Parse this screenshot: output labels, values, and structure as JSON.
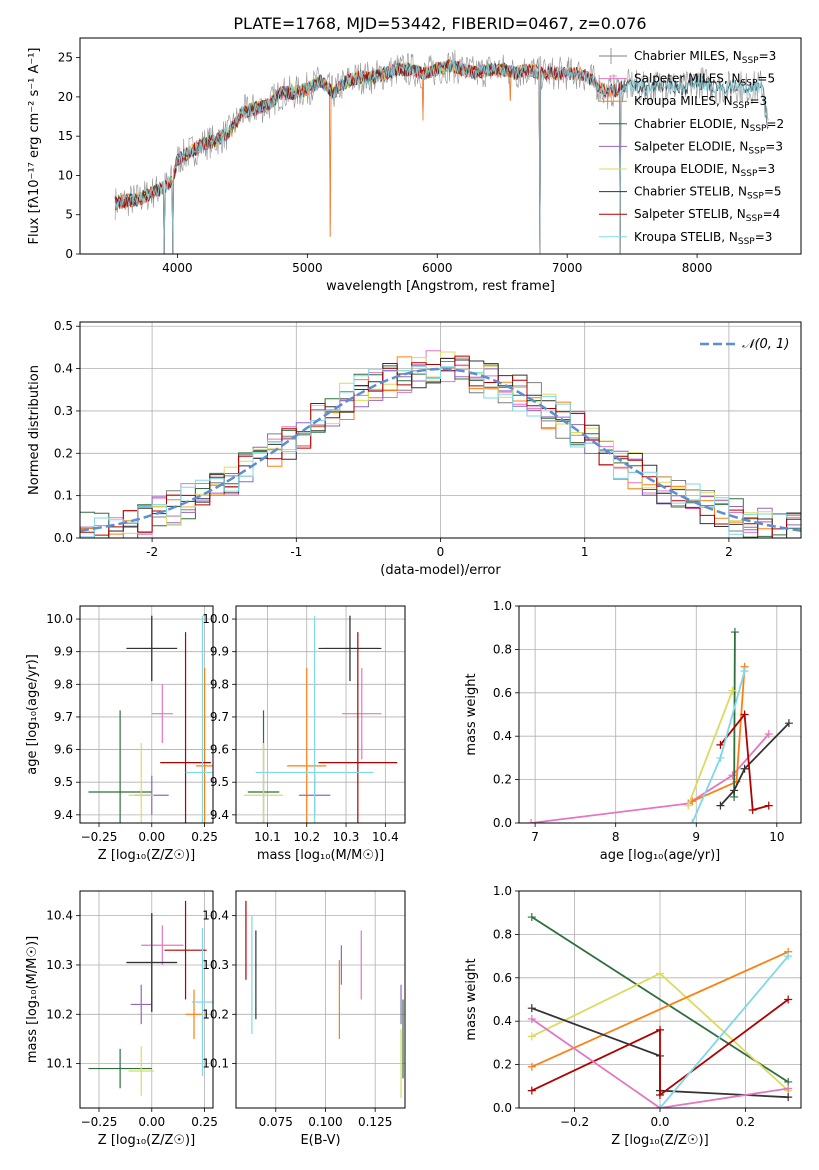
{
  "title": "PLATE=1768, MJD=53442, FIBERID=0467, z=0.076",
  "colors": {
    "Chabrier MILES": "#7f7f7f",
    "Salpeter MILES": "#e377c2",
    "Kroupa MILES": "#ff7f0e",
    "Chabrier ELODIE": "#2f6f3f",
    "Salpeter ELODIE": "#9467bd",
    "Kroupa ELODIE": "#dbdb5d",
    "Chabrier STELIB": "#333333",
    "Salpeter STELIB": "#b00000",
    "Kroupa STELIB": "#7fd8e8"
  },
  "chart_data": [
    {
      "id": "spectrum",
      "type": "line",
      "xlabel": "wavelength [Angstrom, rest frame]",
      "ylabel": "Flux [fλ10⁻¹⁷ erg cm⁻² s⁻¹ A⁻¹]",
      "xlim": [
        3250,
        8800
      ],
      "ylim": [
        0,
        27.5
      ],
      "xticks": [
        4000,
        5000,
        6000,
        7000,
        8000
      ],
      "yticks": [
        0,
        5,
        10,
        15,
        20,
        25
      ],
      "legend_position": "top-right",
      "series": [
        {
          "name": "Chabrier MILES, N",
          "sub": "SSP",
          "eq": "=3"
        },
        {
          "name": "Salpeter MILES, N",
          "sub": "SSP",
          "eq": "=5"
        },
        {
          "name": "Kroupa MILES, N",
          "sub": "SSP",
          "eq": "=3"
        },
        {
          "name": "Chabrier ELODIE, N",
          "sub": "SSP",
          "eq": "=2"
        },
        {
          "name": "Salpeter ELODIE, N",
          "sub": "SSP",
          "eq": "=3"
        },
        {
          "name": "Kroupa ELODIE, N",
          "sub": "SSP",
          "eq": "=3"
        },
        {
          "name": "Chabrier STELIB, N",
          "sub": "SSP",
          "eq": "=5"
        },
        {
          "name": "Salpeter STELIB, N",
          "sub": "SSP",
          "eq": "=4"
        },
        {
          "name": "Kroupa STELIB, N",
          "sub": "SSP",
          "eq": "=3"
        }
      ],
      "envelope": {
        "x": [
          3520,
          3700,
          3900,
          3960,
          4000,
          4100,
          4200,
          4300,
          4400,
          4500,
          4600,
          4700,
          4800,
          4900,
          5000,
          5100,
          5200,
          5300,
          5400,
          5500,
          5600,
          5700,
          5800,
          5900,
          6000,
          6100,
          6200,
          6300,
          6400,
          6500,
          6600,
          6700,
          6800,
          6900,
          7000,
          7100,
          7200,
          7300,
          7400,
          7500,
          7600,
          7700,
          7800,
          7900,
          8000,
          8100,
          8200,
          8300,
          8400,
          8500,
          8550
        ],
        "y": [
          6.5,
          7.0,
          8.5,
          9.5,
          12.0,
          13.0,
          14.0,
          14.5,
          15.5,
          18.0,
          18.5,
          19.0,
          20.5,
          20.5,
          21.0,
          22.0,
          20.5,
          22.0,
          22.5,
          22.5,
          23.0,
          23.5,
          23.5,
          23.0,
          23.5,
          24.0,
          23.5,
          23.0,
          23.5,
          23.5,
          23.0,
          23.5,
          23.0,
          23.0,
          23.0,
          23.0,
          22.0,
          20.5,
          21.0,
          21.5,
          21.0,
          21.5,
          21.5,
          21.0,
          22.0,
          21.5,
          21.0,
          21.5,
          21.0,
          21.5,
          16.0
        ]
      },
      "features": [
        {
          "x": 3900,
          "y": 0
        },
        {
          "x": 3965,
          "y": 0
        },
        {
          "x": 5175,
          "y": 2.2
        },
        {
          "x": 5890,
          "y": 17.0
        },
        {
          "x": 6563,
          "y": 19.5
        },
        {
          "x": 6790,
          "y": 0
        },
        {
          "x": 7410,
          "y": 0
        }
      ]
    },
    {
      "id": "residuals",
      "type": "line",
      "xlabel": "(data-model)/error",
      "ylabel": "Normed distribution",
      "xlim": [
        -2.5,
        2.5
      ],
      "ylim": [
        0,
        0.51
      ],
      "xticks": [
        -2,
        -1,
        0,
        1,
        2
      ],
      "yticks": [
        0.0,
        0.1,
        0.2,
        0.3,
        0.4,
        0.5
      ],
      "grid": true,
      "legend_position": "top-right",
      "reference": {
        "name": "𝒩(0, 1)",
        "color": "#5b8ed6",
        "mean": 0,
        "sigma": 1
      },
      "bin_width": 0.1
    },
    {
      "id": "z-age",
      "type": "scatter",
      "xlabel": "Z [log₁₀(Z/Z☉)]",
      "ylabel": "age  [log₁₀(age/yr)]",
      "xlim": [
        -0.34,
        0.29
      ],
      "ylim": [
        9.375,
        10.04
      ],
      "xticks": [
        -0.25,
        0.0,
        0.25
      ],
      "xticklabels": [
        "−0.25",
        "0.00",
        "0.25"
      ],
      "yticks": [
        9.4,
        9.5,
        9.6,
        9.7,
        9.8,
        9.9,
        10.0
      ],
      "grid": true,
      "points": [
        {
          "s": "Chabrier MILES",
          "x": 0.0,
          "y": 9.91,
          "xerr": 0.12,
          "yerr": 0.1
        },
        {
          "s": "Salpeter MILES",
          "x": 0.05,
          "y": 9.71,
          "xerr": 0.05,
          "yerr": 0.09
        },
        {
          "s": "Kroupa MILES",
          "x": 0.25,
          "y": 9.55,
          "xerr": 0.04,
          "yerr": 0.3
        },
        {
          "s": "Chabrier ELODIE",
          "x": -0.15,
          "y": 9.47,
          "xerr": 0.15,
          "yerr": 0.25
        },
        {
          "s": "Salpeter ELODIE",
          "x": 0.0,
          "y": 9.46,
          "xerr": 0.08,
          "yerr": 0.06
        },
        {
          "s": "Kroupa ELODIE",
          "x": -0.05,
          "y": 9.46,
          "xerr": 0.06,
          "yerr": 0.16
        },
        {
          "s": "Chabrier STELIB",
          "x": 0.0,
          "y": 9.91,
          "xerr": 0.12,
          "yerr": 0.1
        },
        {
          "s": "Salpeter STELIB",
          "x": 0.16,
          "y": 9.56,
          "xerr": 0.12,
          "yerr": 0.4
        },
        {
          "s": "Kroupa STELIB",
          "x": 0.24,
          "y": 9.53,
          "xerr": 0.08,
          "yerr": 0.48
        }
      ]
    },
    {
      "id": "mass-age",
      "type": "scatter",
      "xlabel": "mass [log₁₀(M/M☉)]",
      "ylabel": "",
      "xlim": [
        10.02,
        10.45
      ],
      "ylim": [
        9.375,
        10.04
      ],
      "xticks": [
        10.1,
        10.2,
        10.3,
        10.4
      ],
      "yticks": [
        9.4,
        9.5,
        9.6,
        9.7,
        9.8,
        9.9,
        10.0
      ],
      "grid": true,
      "points": [
        {
          "s": "Chabrier MILES",
          "x": 10.31,
          "y": 9.91,
          "xerr": 0.07,
          "yerr": 0.1
        },
        {
          "s": "Salpeter MILES",
          "x": 10.34,
          "y": 9.71,
          "xerr": 0.05,
          "yerr": 0.14
        },
        {
          "s": "Kroupa MILES",
          "x": 10.2,
          "y": 9.55,
          "xerr": 0.05,
          "yerr": 0.3
        },
        {
          "s": "Chabrier ELODIE",
          "x": 10.09,
          "y": 9.47,
          "xerr": 0.04,
          "yerr": 0.25
        },
        {
          "s": "Salpeter ELODIE",
          "x": 10.22,
          "y": 9.46,
          "xerr": 0.04,
          "yerr": 0.06
        },
        {
          "s": "Kroupa ELODIE",
          "x": 10.09,
          "y": 9.46,
          "xerr": 0.05,
          "yerr": 0.16
        },
        {
          "s": "Chabrier STELIB",
          "x": 10.31,
          "y": 9.91,
          "xerr": 0.08,
          "yerr": 0.1
        },
        {
          "s": "Salpeter STELIB",
          "x": 10.33,
          "y": 9.56,
          "xerr": 0.1,
          "yerr": 0.4
        },
        {
          "s": "Kroupa STELIB",
          "x": 10.22,
          "y": 9.53,
          "xerr": 0.15,
          "yerr": 0.48
        }
      ]
    },
    {
      "id": "age-weight",
      "type": "line",
      "xlabel": "age  [log₁₀(age/yr)]",
      "ylabel": "mass weight",
      "xlim": [
        6.8,
        10.3
      ],
      "ylim": [
        0,
        1.0
      ],
      "xticks": [
        7,
        8,
        9,
        10
      ],
      "yticks": [
        0.0,
        0.2,
        0.4,
        0.6,
        0.8,
        1.0
      ],
      "grid": true,
      "series": [
        {
          "s": "Salpeter MILES",
          "x": [
            6.95,
            8.9,
            9.45,
            9.9
          ],
          "y": [
            0.0,
            0.09,
            0.22,
            0.41
          ]
        },
        {
          "s": "Kroupa MILES",
          "x": [
            8.95,
            9.5,
            9.6
          ],
          "y": [
            0.1,
            0.19,
            0.72
          ]
        },
        {
          "s": "Chabrier ELODIE",
          "x": [
            9.47,
            9.48
          ],
          "y": [
            0.12,
            0.88
          ]
        },
        {
          "s": "Kroupa ELODIE",
          "x": [
            8.9,
            9.45
          ],
          "y": [
            0.08,
            0.61
          ]
        },
        {
          "s": "Chabrier STELIB",
          "x": [
            9.3,
            9.47,
            9.6,
            10.15
          ],
          "y": [
            0.08,
            0.15,
            0.25,
            0.46
          ]
        },
        {
          "s": "Salpeter STELIB",
          "x": [
            9.3,
            9.6,
            9.7,
            9.9
          ],
          "y": [
            0.36,
            0.5,
            0.06,
            0.08
          ]
        },
        {
          "s": "Kroupa STELIB",
          "x": [
            8.95,
            9.3,
            9.6
          ],
          "y": [
            0.0,
            0.3,
            0.7
          ]
        }
      ]
    },
    {
      "id": "z-mass",
      "type": "scatter",
      "xlabel": "Z [log₁₀(Z/Z☉)]",
      "ylabel": "mass [log₁₀(M/M☉)]",
      "xlim": [
        -0.34,
        0.29
      ],
      "ylim": [
        10.01,
        10.45
      ],
      "xticks": [
        -0.25,
        0.0,
        0.25
      ],
      "xticklabels": [
        "−0.25",
        "0.00",
        "0.25"
      ],
      "yticks": [
        10.1,
        10.2,
        10.3,
        10.4
      ],
      "grid": true,
      "points": [
        {
          "s": "Chabrier MILES",
          "x": 0.0,
          "y": 10.305,
          "xerr": 0.12,
          "yerr": 0.1
        },
        {
          "s": "Salpeter MILES",
          "x": 0.05,
          "y": 10.34,
          "xerr": 0.1,
          "yerr": 0.04
        },
        {
          "s": "Kroupa MILES",
          "x": 0.2,
          "y": 10.2,
          "xerr": 0.04,
          "yerr": 0.05
        },
        {
          "s": "Chabrier ELODIE",
          "x": -0.15,
          "y": 10.09,
          "xerr": 0.15,
          "yerr": 0.04
        },
        {
          "s": "Salpeter ELODIE",
          "x": -0.05,
          "y": 10.22,
          "xerr": 0.05,
          "yerr": 0.04
        },
        {
          "s": "Kroupa ELODIE",
          "x": -0.05,
          "y": 10.085,
          "xerr": 0.06,
          "yerr": 0.05
        },
        {
          "s": "Chabrier STELIB",
          "x": 0.0,
          "y": 10.305,
          "xerr": 0.12,
          "yerr": 0.1
        },
        {
          "s": "Salpeter STELIB",
          "x": 0.16,
          "y": 10.33,
          "xerr": 0.1,
          "yerr": 0.1
        },
        {
          "s": "Kroupa STELIB",
          "x": 0.24,
          "y": 10.225,
          "xerr": 0.05,
          "yerr": 0.15
        }
      ]
    },
    {
      "id": "ebv-mass",
      "type": "scatter",
      "xlabel": "E(B-V)",
      "ylabel": "",
      "xlim": [
        0.055,
        0.14
      ],
      "ylim": [
        10.01,
        10.45
      ],
      "xticks": [
        0.075,
        0.1,
        0.125
      ],
      "xticklabels": [
        "0.075",
        "0.100",
        "0.125"
      ],
      "yticks": [
        10.1,
        10.2,
        10.3,
        10.4
      ],
      "grid": true,
      "points": [
        {
          "s": "Salpeter STELIB",
          "x": 0.06,
          "y": 10.35,
          "yerr": 0.08
        },
        {
          "s": "Kroupa STELIB",
          "x": 0.063,
          "y": 10.28,
          "yerr": 0.12
        },
        {
          "s": "Chabrier STELIB",
          "x": 0.065,
          "y": 10.28,
          "yerr": 0.09
        },
        {
          "s": "Kroupa MILES",
          "x": 0.107,
          "y": 10.23,
          "yerr": 0.08
        },
        {
          "s": "Salpeter ELODIE",
          "x": 0.108,
          "y": 10.3,
          "yerr": 0.04
        },
        {
          "s": "Salpeter MILES",
          "x": 0.118,
          "y": 10.3,
          "yerr": 0.07
        },
        {
          "s": "Salpeter ELODIE",
          "x": 0.138,
          "y": 10.22,
          "yerr": 0.04
        },
        {
          "s": "Kroupa ELODIE",
          "x": 0.138,
          "y": 10.1,
          "yerr": 0.07
        },
        {
          "s": "Chabrier ELODIE",
          "x": 0.139,
          "y": 10.15,
          "yerr": 0.08
        }
      ]
    },
    {
      "id": "z-weight",
      "type": "line",
      "xlabel": "Z [log₁₀(Z/Z☉)]",
      "ylabel": "mass weight",
      "xlim": [
        -0.33,
        0.33
      ],
      "ylim": [
        0,
        1.0
      ],
      "xticks": [
        -0.2,
        0.0,
        0.2
      ],
      "xticklabels": [
        "−0.2",
        "0.0",
        "0.2"
      ],
      "yticks": [
        0.0,
        0.2,
        0.4,
        0.6,
        0.8,
        1.0
      ],
      "grid": true,
      "series": [
        {
          "s": "Chabrier ELODIE",
          "x": [
            -0.3,
            0.3
          ],
          "y": [
            0.88,
            0.12
          ]
        },
        {
          "s": "Kroupa ELODIE",
          "x": [
            -0.3,
            0.0,
            0.3
          ],
          "y": [
            0.33,
            0.62,
            0.08
          ]
        },
        {
          "s": "Kroupa MILES",
          "x": [
            -0.3,
            0.3
          ],
          "y": [
            0.19,
            0.72
          ]
        },
        {
          "s": "Chabrier STELIB",
          "x": [
            -0.3,
            0.0,
            0.0,
            0.3
          ],
          "y": [
            0.46,
            0.24,
            0.08,
            0.05
          ]
        },
        {
          "s": "Salpeter STELIB",
          "x": [
            -0.3,
            0.0,
            0.0,
            0.3
          ],
          "y": [
            0.08,
            0.36,
            0.06,
            0.5
          ]
        },
        {
          "s": "Salpeter MILES",
          "x": [
            -0.3,
            0.0,
            0.3
          ],
          "y": [
            0.41,
            0.0,
            0.09
          ]
        },
        {
          "s": "Kroupa STELIB",
          "x": [
            0.0,
            0.3
          ],
          "y": [
            0.0,
            0.7
          ]
        }
      ]
    }
  ]
}
